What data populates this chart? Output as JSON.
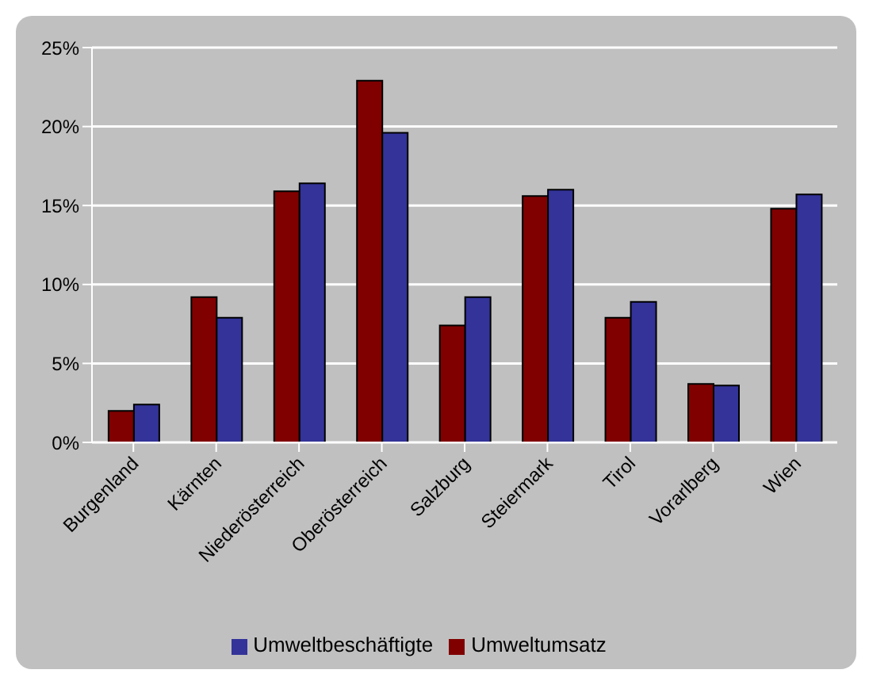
{
  "chart_data": {
    "type": "bar",
    "categories": [
      "Burgenland",
      "Kärnten",
      "Niederösterreich",
      "Oberösterreich",
      "Salzburg",
      "Steiermark",
      "Tirol",
      "Vorarlberg",
      "Wien"
    ],
    "series": [
      {
        "name": "Umweltumsatz",
        "color": "#800000",
        "values": [
          2.0,
          9.2,
          15.9,
          22.9,
          7.4,
          15.6,
          7.9,
          3.7,
          14.8
        ]
      },
      {
        "name": "Umweltbeschäftigte",
        "color": "#333399",
        "values": [
          2.4,
          7.9,
          16.4,
          19.6,
          9.2,
          16.0,
          8.9,
          3.6,
          15.7
        ]
      }
    ],
    "ylim": [
      0,
      25
    ],
    "yticks": [
      {
        "value": 0,
        "label": "0%"
      },
      {
        "value": 5,
        "label": "5%"
      },
      {
        "value": 10,
        "label": "10%"
      },
      {
        "value": 15,
        "label": "15%"
      },
      {
        "value": 20,
        "label": "20%"
      },
      {
        "value": 25,
        "label": "25%"
      }
    ],
    "grid": "y",
    "legend": "bottom"
  }
}
